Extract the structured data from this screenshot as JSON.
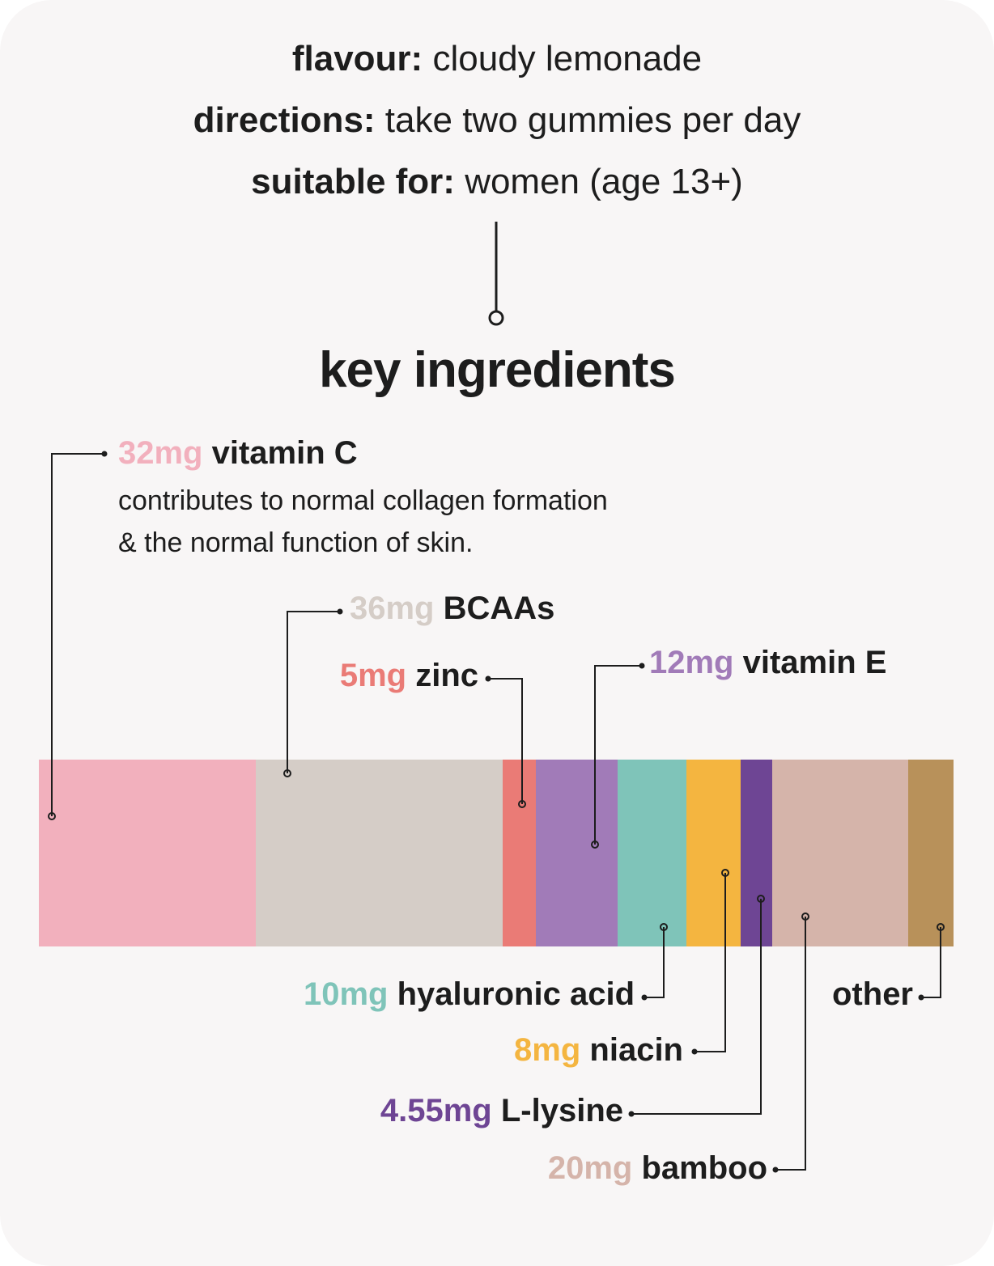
{
  "info": {
    "flavour": {
      "label": "flavour:",
      "value": "cloudy lemonade"
    },
    "directions": {
      "label": "directions:",
      "value": "take two gummies per day"
    },
    "suitable": {
      "label": "suitable for:",
      "value": "women (age 13+)"
    }
  },
  "heading": "key ingredients",
  "segments": [
    {
      "name": "vitamin C",
      "amount": "32mg",
      "color": "#f2b0bd",
      "description": [
        "contributes to normal collagen formation",
        "& the normal function of skin."
      ]
    },
    {
      "name": "BCAAs",
      "amount": "36mg",
      "color": "#d5cdc7"
    },
    {
      "name": "zinc",
      "amount": "5mg",
      "color": "#ea7b76"
    },
    {
      "name": "vitamin E",
      "amount": "12mg",
      "color": "#a17bb8"
    },
    {
      "name": "hyaluronic acid",
      "amount": "10mg",
      "color": "#7fc4b9"
    },
    {
      "name": "niacin",
      "amount": "8mg",
      "color": "#f4b540"
    },
    {
      "name": "L-lysine",
      "amount": "4.55mg",
      "color": "#6e4594"
    },
    {
      "name": "bamboo",
      "amount": "20mg",
      "color": "#d5b4aa"
    },
    {
      "name": "other",
      "amount": "",
      "color": "#b8915a"
    }
  ]
}
